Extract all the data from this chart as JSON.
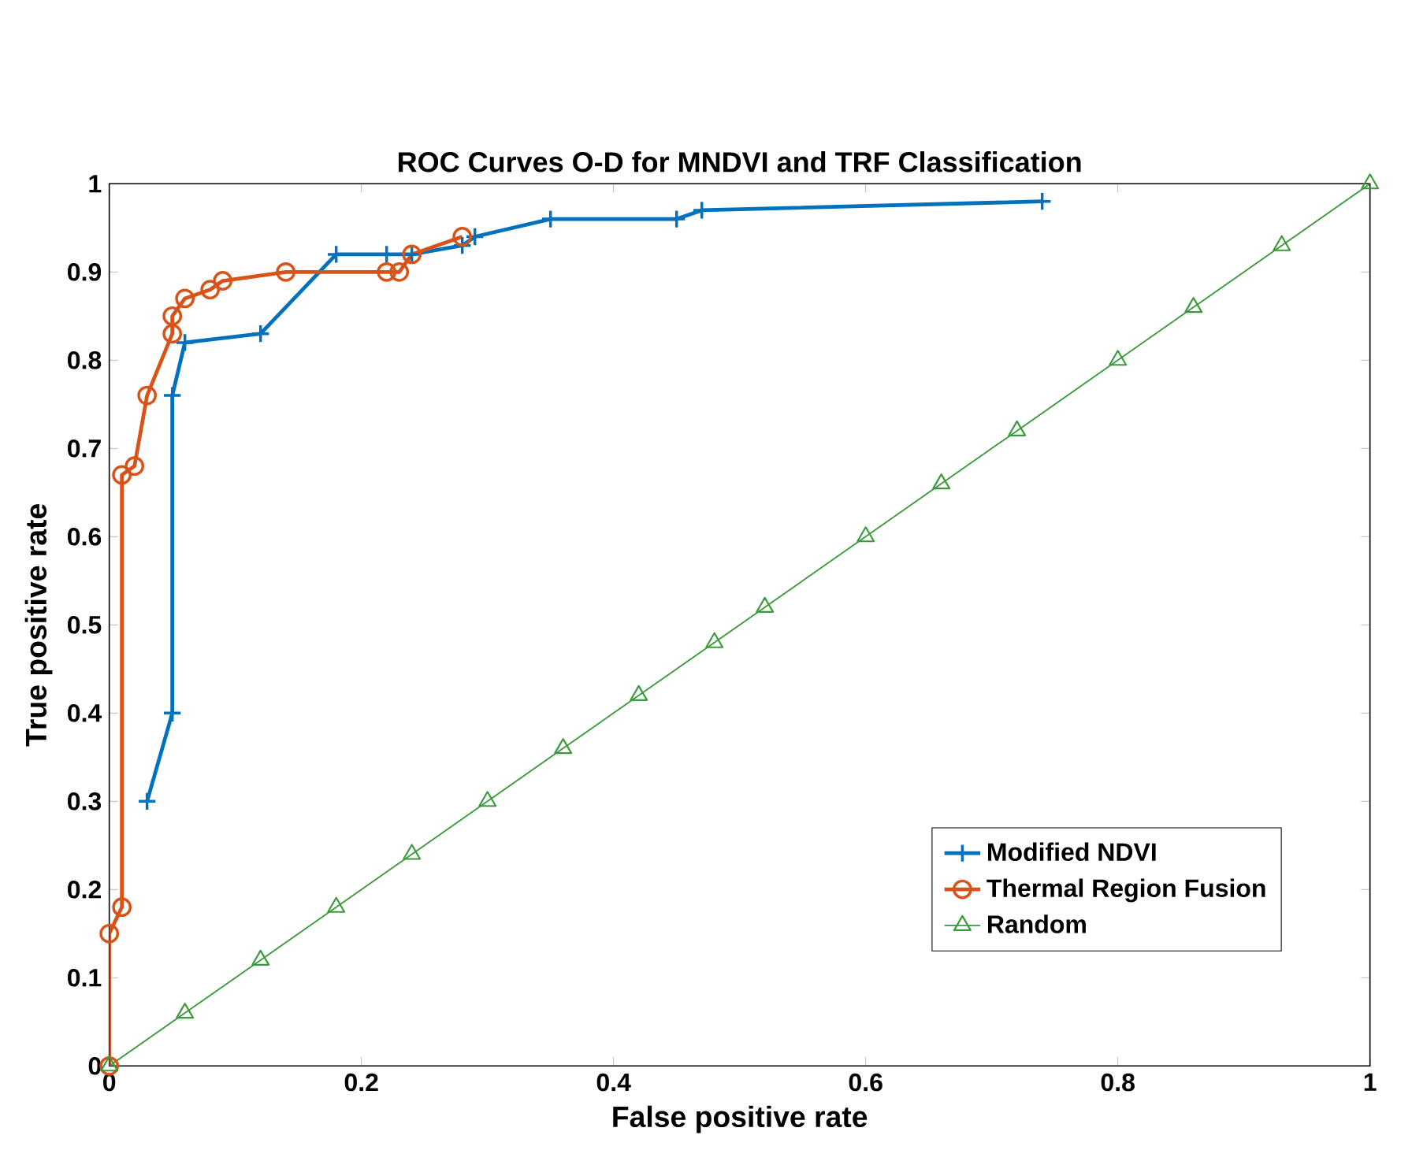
{
  "chart_data": {
    "type": "line",
    "title": "ROC Curves O-D for MNDVI and TRF Classification",
    "xlabel": "False positive rate",
    "ylabel": "True positive rate",
    "xlim": [
      0,
      1
    ],
    "ylim": [
      0,
      1
    ],
    "xticks": [
      0,
      0.2,
      0.4,
      0.6,
      0.8,
      1
    ],
    "yticks": [
      0,
      0.1,
      0.2,
      0.3,
      0.4,
      0.5,
      0.6,
      0.7,
      0.8,
      0.9,
      1
    ],
    "grid": false,
    "legend": "bottom right",
    "series": [
      {
        "name": "Modified NDVI",
        "color": "#0072bd",
        "marker": "cross",
        "x": [
          0.03,
          0.05,
          0.05,
          0.06,
          0.12,
          0.18,
          0.22,
          0.24,
          0.28,
          0.29,
          0.35,
          0.45,
          0.47,
          0.74
        ],
        "values": [
          0.3,
          0.4,
          0.76,
          0.82,
          0.83,
          0.92,
          0.92,
          0.92,
          0.93,
          0.94,
          0.96,
          0.96,
          0.97,
          0.98
        ]
      },
      {
        "name": "Thermal Region Fusion",
        "color": "#d95319",
        "marker": "circle",
        "x": [
          0,
          0,
          0.01,
          0.01,
          0.02,
          0.03,
          0.05,
          0.05,
          0.06,
          0.08,
          0.09,
          0.14,
          0.22,
          0.23,
          0.24,
          0.28
        ],
        "values": [
          0,
          0.15,
          0.18,
          0.67,
          0.68,
          0.76,
          0.83,
          0.85,
          0.87,
          0.88,
          0.89,
          0.9,
          0.9,
          0.9,
          0.92,
          0.94
        ]
      },
      {
        "name": "Random",
        "color": "#3a9a3a",
        "marker": "triangle",
        "x": [
          0,
          0.06,
          0.12,
          0.18,
          0.24,
          0.3,
          0.36,
          0.42,
          0.48,
          0.52,
          0.6,
          0.66,
          0.72,
          0.8,
          0.86,
          0.93,
          1.0
        ],
        "values": [
          0,
          0.06,
          0.12,
          0.18,
          0.24,
          0.3,
          0.36,
          0.42,
          0.48,
          0.52,
          0.6,
          0.66,
          0.72,
          0.8,
          0.86,
          0.93,
          1.0
        ]
      }
    ]
  }
}
